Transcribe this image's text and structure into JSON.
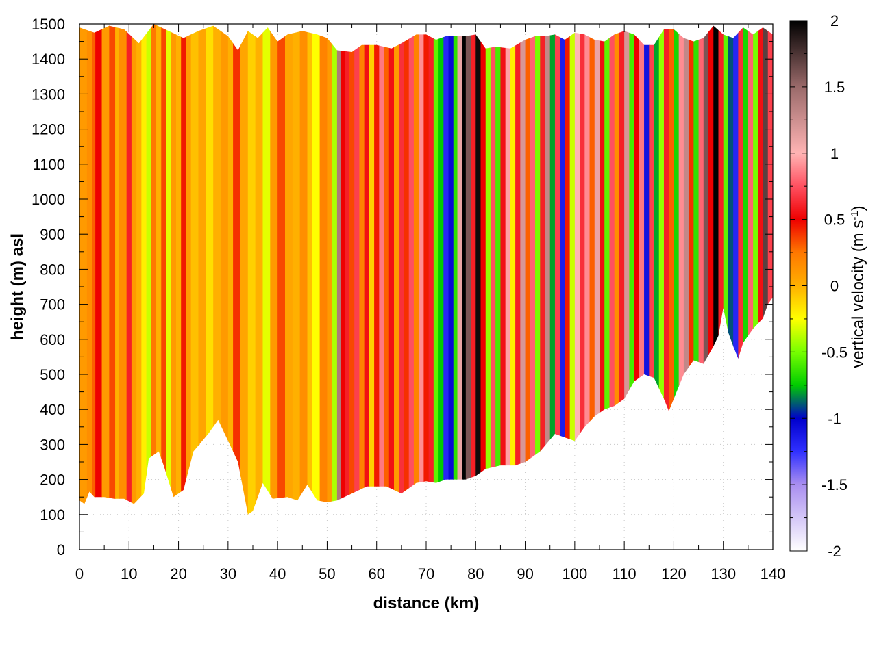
{
  "chart_data": {
    "type": "heatmap",
    "title": "",
    "xlabel": "distance (km)",
    "ylabel": "height (m) asl",
    "xlim": [
      0,
      140
    ],
    "ylim": [
      0,
      1500
    ],
    "x_ticks": [
      0,
      10,
      20,
      30,
      40,
      50,
      60,
      70,
      80,
      90,
      100,
      110,
      120,
      130,
      140
    ],
    "y_ticks": [
      0,
      100,
      200,
      300,
      400,
      500,
      600,
      700,
      800,
      900,
      1000,
      1100,
      1200,
      1300,
      1400,
      1500
    ],
    "colorbar": {
      "label_main": "vertical velocity (m s",
      "label_sup": "-1",
      "label_end": ")",
      "range": [
        -2,
        2
      ],
      "ticks": [
        -2,
        -1.5,
        -1,
        -0.5,
        0,
        0.5,
        1,
        1.5,
        2
      ],
      "tick_labels": [
        "-2",
        "-1.5",
        "-1",
        "-0.5",
        "0",
        "0.5",
        "1",
        "1.5",
        "2"
      ],
      "palette": [
        {
          "v": -2.0,
          "color": "#ffffff"
        },
        {
          "v": -1.5,
          "color": "#a98ef0"
        },
        {
          "v": -1.25,
          "color": "#3030ff"
        },
        {
          "v": -1.0,
          "color": "#0000cc"
        },
        {
          "v": -0.75,
          "color": "#00cc00"
        },
        {
          "v": -0.5,
          "color": "#77ff00"
        },
        {
          "v": -0.25,
          "color": "#ffff00"
        },
        {
          "v": 0.0,
          "color": "#ffb000"
        },
        {
          "v": 0.25,
          "color": "#ff7800"
        },
        {
          "v": 0.5,
          "color": "#ee0000"
        },
        {
          "v": 0.75,
          "color": "#ff5060"
        },
        {
          "v": 1.0,
          "color": "#ffb4b4"
        },
        {
          "v": 1.5,
          "color": "#9a6a6a"
        },
        {
          "v": 2.0,
          "color": "#000000"
        }
      ]
    },
    "terrain_height": [
      [
        0,
        140
      ],
      [
        1,
        130
      ],
      [
        2,
        165
      ],
      [
        3,
        150
      ],
      [
        5,
        150
      ],
      [
        7,
        145
      ],
      [
        9,
        145
      ],
      [
        11,
        130
      ],
      [
        13,
        160
      ],
      [
        14,
        260
      ],
      [
        16,
        280
      ],
      [
        17,
        240
      ],
      [
        19,
        150
      ],
      [
        21,
        170
      ],
      [
        23,
        280
      ],
      [
        26,
        330
      ],
      [
        28,
        370
      ],
      [
        30,
        310
      ],
      [
        32,
        250
      ],
      [
        34,
        100
      ],
      [
        35,
        110
      ],
      [
        37,
        190
      ],
      [
        39,
        145
      ],
      [
        42,
        150
      ],
      [
        44,
        140
      ],
      [
        46,
        185
      ],
      [
        48,
        140
      ],
      [
        50,
        135
      ],
      [
        52,
        140
      ],
      [
        55,
        160
      ],
      [
        58,
        180
      ],
      [
        62,
        180
      ],
      [
        65,
        160
      ],
      [
        68,
        190
      ],
      [
        70,
        195
      ],
      [
        72,
        190
      ],
      [
        74,
        200
      ],
      [
        78,
        200
      ],
      [
        80,
        210
      ],
      [
        82,
        230
      ],
      [
        85,
        240
      ],
      [
        88,
        240
      ],
      [
        90,
        250
      ],
      [
        93,
        280
      ],
      [
        96,
        330
      ],
      [
        98,
        320
      ],
      [
        100,
        310
      ],
      [
        102,
        350
      ],
      [
        104,
        380
      ],
      [
        106,
        400
      ],
      [
        108,
        410
      ],
      [
        110,
        430
      ],
      [
        112,
        480
      ],
      [
        114,
        500
      ],
      [
        116,
        490
      ],
      [
        118,
        430
      ],
      [
        119,
        395
      ],
      [
        120,
        430
      ],
      [
        122,
        500
      ],
      [
        124,
        540
      ],
      [
        126,
        530
      ],
      [
        128,
        580
      ],
      [
        129,
        610
      ],
      [
        130,
        690
      ],
      [
        131,
        620
      ],
      [
        132,
        580
      ],
      [
        133,
        545
      ],
      [
        134,
        590
      ],
      [
        136,
        630
      ],
      [
        138,
        660
      ],
      [
        139,
        700
      ],
      [
        140,
        720
      ]
    ],
    "top_height": [
      [
        0,
        1490
      ],
      [
        3,
        1475
      ],
      [
        6,
        1495
      ],
      [
        9,
        1485
      ],
      [
        12,
        1445
      ],
      [
        15,
        1500
      ],
      [
        18,
        1480
      ],
      [
        21,
        1460
      ],
      [
        24,
        1480
      ],
      [
        27,
        1495
      ],
      [
        30,
        1465
      ],
      [
        32,
        1425
      ],
      [
        34,
        1480
      ],
      [
        36,
        1460
      ],
      [
        38,
        1490
      ],
      [
        40,
        1450
      ],
      [
        42,
        1470
      ],
      [
        45,
        1480
      ],
      [
        48,
        1470
      ],
      [
        50,
        1460
      ],
      [
        52,
        1425
      ],
      [
        55,
        1420
      ],
      [
        57,
        1440
      ],
      [
        60,
        1440
      ],
      [
        63,
        1430
      ],
      [
        65,
        1445
      ],
      [
        68,
        1470
      ],
      [
        70,
        1470
      ],
      [
        72,
        1455
      ],
      [
        74,
        1465
      ],
      [
        76,
        1465
      ],
      [
        78,
        1465
      ],
      [
        80,
        1470
      ],
      [
        82,
        1430
      ],
      [
        84,
        1435
      ],
      [
        87,
        1430
      ],
      [
        90,
        1455
      ],
      [
        92,
        1465
      ],
      [
        94,
        1465
      ],
      [
        96,
        1470
      ],
      [
        98,
        1455
      ],
      [
        100,
        1475
      ],
      [
        102,
        1470
      ],
      [
        104,
        1455
      ],
      [
        106,
        1450
      ],
      [
        108,
        1470
      ],
      [
        110,
        1480
      ],
      [
        112,
        1470
      ],
      [
        114,
        1440
      ],
      [
        116,
        1440
      ],
      [
        118,
        1485
      ],
      [
        120,
        1485
      ],
      [
        122,
        1460
      ],
      [
        124,
        1450
      ],
      [
        126,
        1460
      ],
      [
        128,
        1495
      ],
      [
        130,
        1470
      ],
      [
        132,
        1460
      ],
      [
        134,
        1490
      ],
      [
        136,
        1470
      ],
      [
        138,
        1490
      ],
      [
        140,
        1470
      ]
    ],
    "velocity_columns": [
      {
        "x": 0,
        "w": 0.1
      },
      {
        "x": 1.5,
        "w": 0.15
      },
      {
        "x": 2.5,
        "w": 0.3
      },
      {
        "x": 3.2,
        "w": 0.5
      },
      {
        "x": 4.5,
        "w": 0.1
      },
      {
        "x": 6,
        "w": 0.35
      },
      {
        "x": 7.2,
        "w": 0.0
      },
      {
        "x": 8,
        "w": 0.15
      },
      {
        "x": 9.5,
        "w": 0.6
      },
      {
        "x": 10.5,
        "w": 0.1
      },
      {
        "x": 11.5,
        "w": 0.0
      },
      {
        "x": 12.5,
        "w": -0.2
      },
      {
        "x": 13.5,
        "w": -0.35
      },
      {
        "x": 14.5,
        "w": 0.25
      },
      {
        "x": 15.5,
        "w": 0.0
      },
      {
        "x": 16.5,
        "w": 0.35
      },
      {
        "x": 17.5,
        "w": -0.3
      },
      {
        "x": 18.5,
        "w": 0.1
      },
      {
        "x": 19.5,
        "w": 0.0
      },
      {
        "x": 20.5,
        "w": 0.45
      },
      {
        "x": 21.5,
        "w": 0.1
      },
      {
        "x": 22.5,
        "w": -0.05
      },
      {
        "x": 24,
        "w": 0.05
      },
      {
        "x": 25.5,
        "w": -0.15
      },
      {
        "x": 27,
        "w": 0.0
      },
      {
        "x": 28.5,
        "w": 0.1
      },
      {
        "x": 30,
        "w": 0.0
      },
      {
        "x": 31,
        "w": 0.4
      },
      {
        "x": 32.5,
        "w": 0.05
      },
      {
        "x": 34,
        "w": -0.1
      },
      {
        "x": 35.5,
        "w": 0.0
      },
      {
        "x": 37,
        "w": -0.3
      },
      {
        "x": 38.5,
        "w": 0.1
      },
      {
        "x": 40,
        "w": 0.35
      },
      {
        "x": 41.5,
        "w": 0.05
      },
      {
        "x": 43,
        "w": 0.0
      },
      {
        "x": 44.5,
        "w": 0.15
      },
      {
        "x": 46,
        "w": -0.05
      },
      {
        "x": 47,
        "w": -0.25
      },
      {
        "x": 48.5,
        "w": 0.2
      },
      {
        "x": 50,
        "w": 0.1
      },
      {
        "x": 51,
        "w": -0.4
      },
      {
        "x": 52,
        "w": 1.4
      },
      {
        "x": 52.8,
        "w": 0.5
      },
      {
        "x": 53.6,
        "w": 0.6
      },
      {
        "x": 54.5,
        "w": 0.35
      },
      {
        "x": 55.5,
        "w": 0.7
      },
      {
        "x": 56.5,
        "w": 0.2
      },
      {
        "x": 57.5,
        "w": 0.55
      },
      {
        "x": 58.5,
        "w": -0.1
      },
      {
        "x": 59.5,
        "w": 0.45
      },
      {
        "x": 60.5,
        "w": 0.85
      },
      {
        "x": 61.5,
        "w": 0.3
      },
      {
        "x": 62.5,
        "w": 0.55
      },
      {
        "x": 63.5,
        "w": 0.1
      },
      {
        "x": 64.5,
        "w": 0.65
      },
      {
        "x": 65.5,
        "w": 0.4
      },
      {
        "x": 66.5,
        "w": 0.75
      },
      {
        "x": 67.5,
        "w": 0.2
      },
      {
        "x": 68.5,
        "w": 0.9
      },
      {
        "x": 69.5,
        "w": 0.45
      },
      {
        "x": 70.5,
        "w": 0.6
      },
      {
        "x": 71.5,
        "w": -0.55
      },
      {
        "x": 72.5,
        "w": -0.75
      },
      {
        "x": 73.5,
        "w": -1.2
      },
      {
        "x": 74.5,
        "w": -1.05
      },
      {
        "x": 75.5,
        "w": -0.65
      },
      {
        "x": 76.3,
        "w": 1.1
      },
      {
        "x": 77.2,
        "w": 2.0
      },
      {
        "x": 78,
        "w": 1.6
      },
      {
        "x": 79,
        "w": 0.6
      },
      {
        "x": 80,
        "w": 1.95
      },
      {
        "x": 81,
        "w": 0.5
      },
      {
        "x": 82,
        "w": -0.45
      },
      {
        "x": 83,
        "w": 0.75
      },
      {
        "x": 84,
        "w": -0.6
      },
      {
        "x": 85,
        "w": 0.55
      },
      {
        "x": 86,
        "w": 0.95
      },
      {
        "x": 87,
        "w": -0.2
      },
      {
        "x": 88,
        "w": 0.6
      },
      {
        "x": 89,
        "w": 1.2
      },
      {
        "x": 90,
        "w": 0.3
      },
      {
        "x": 91,
        "w": 0.8
      },
      {
        "x": 92,
        "w": -0.5
      },
      {
        "x": 93,
        "w": 0.6
      },
      {
        "x": 94,
        "w": 1.3
      },
      {
        "x": 95,
        "w": -0.8
      },
      {
        "x": 96,
        "w": 0.7
      },
      {
        "x": 97,
        "w": -1.15
      },
      {
        "x": 98,
        "w": 0.45
      },
      {
        "x": 99,
        "w": -0.35
      },
      {
        "x": 100,
        "w": 1.0
      },
      {
        "x": 101,
        "w": 0.65
      },
      {
        "x": 102,
        "w": 0.9
      },
      {
        "x": 103,
        "w": 0.3
      },
      {
        "x": 104,
        "w": 1.1
      },
      {
        "x": 105,
        "w": 0.55
      },
      {
        "x": 106,
        "w": -0.55
      },
      {
        "x": 107,
        "w": 0.75
      },
      {
        "x": 108,
        "w": 0.15
      },
      {
        "x": 109,
        "w": 0.6
      },
      {
        "x": 110,
        "w": 1.2
      },
      {
        "x": 111,
        "w": -0.6
      },
      {
        "x": 112,
        "w": 0.5
      },
      {
        "x": 113,
        "w": 0.85
      },
      {
        "x": 114,
        "w": -1.1
      },
      {
        "x": 115,
        "w": 0.7
      },
      {
        "x": 116,
        "w": -0.8
      },
      {
        "x": 117,
        "w": -0.45
      },
      {
        "x": 118,
        "w": 0.6
      },
      {
        "x": 119,
        "w": 0.3
      },
      {
        "x": 120,
        "w": -0.7
      },
      {
        "x": 121,
        "w": 0.9
      },
      {
        "x": 122,
        "w": 1.3
      },
      {
        "x": 123,
        "w": 0.4
      },
      {
        "x": 124,
        "w": -0.65
      },
      {
        "x": 125,
        "w": 0.8
      },
      {
        "x": 126,
        "w": 1.6
      },
      {
        "x": 127,
        "w": 0.5
      },
      {
        "x": 128,
        "w": 2.0
      },
      {
        "x": 129,
        "w": 0.6
      },
      {
        "x": 130,
        "w": -0.55
      },
      {
        "x": 131,
        "w": -0.9
      },
      {
        "x": 132,
        "w": -1.2
      },
      {
        "x": 133,
        "w": 0.65
      },
      {
        "x": 134,
        "w": -0.7
      },
      {
        "x": 135,
        "w": 0.8
      },
      {
        "x": 136,
        "w": -0.5
      },
      {
        "x": 137,
        "w": 0.55
      },
      {
        "x": 138,
        "w": 1.7
      },
      {
        "x": 139,
        "w": 0.7
      }
    ]
  }
}
